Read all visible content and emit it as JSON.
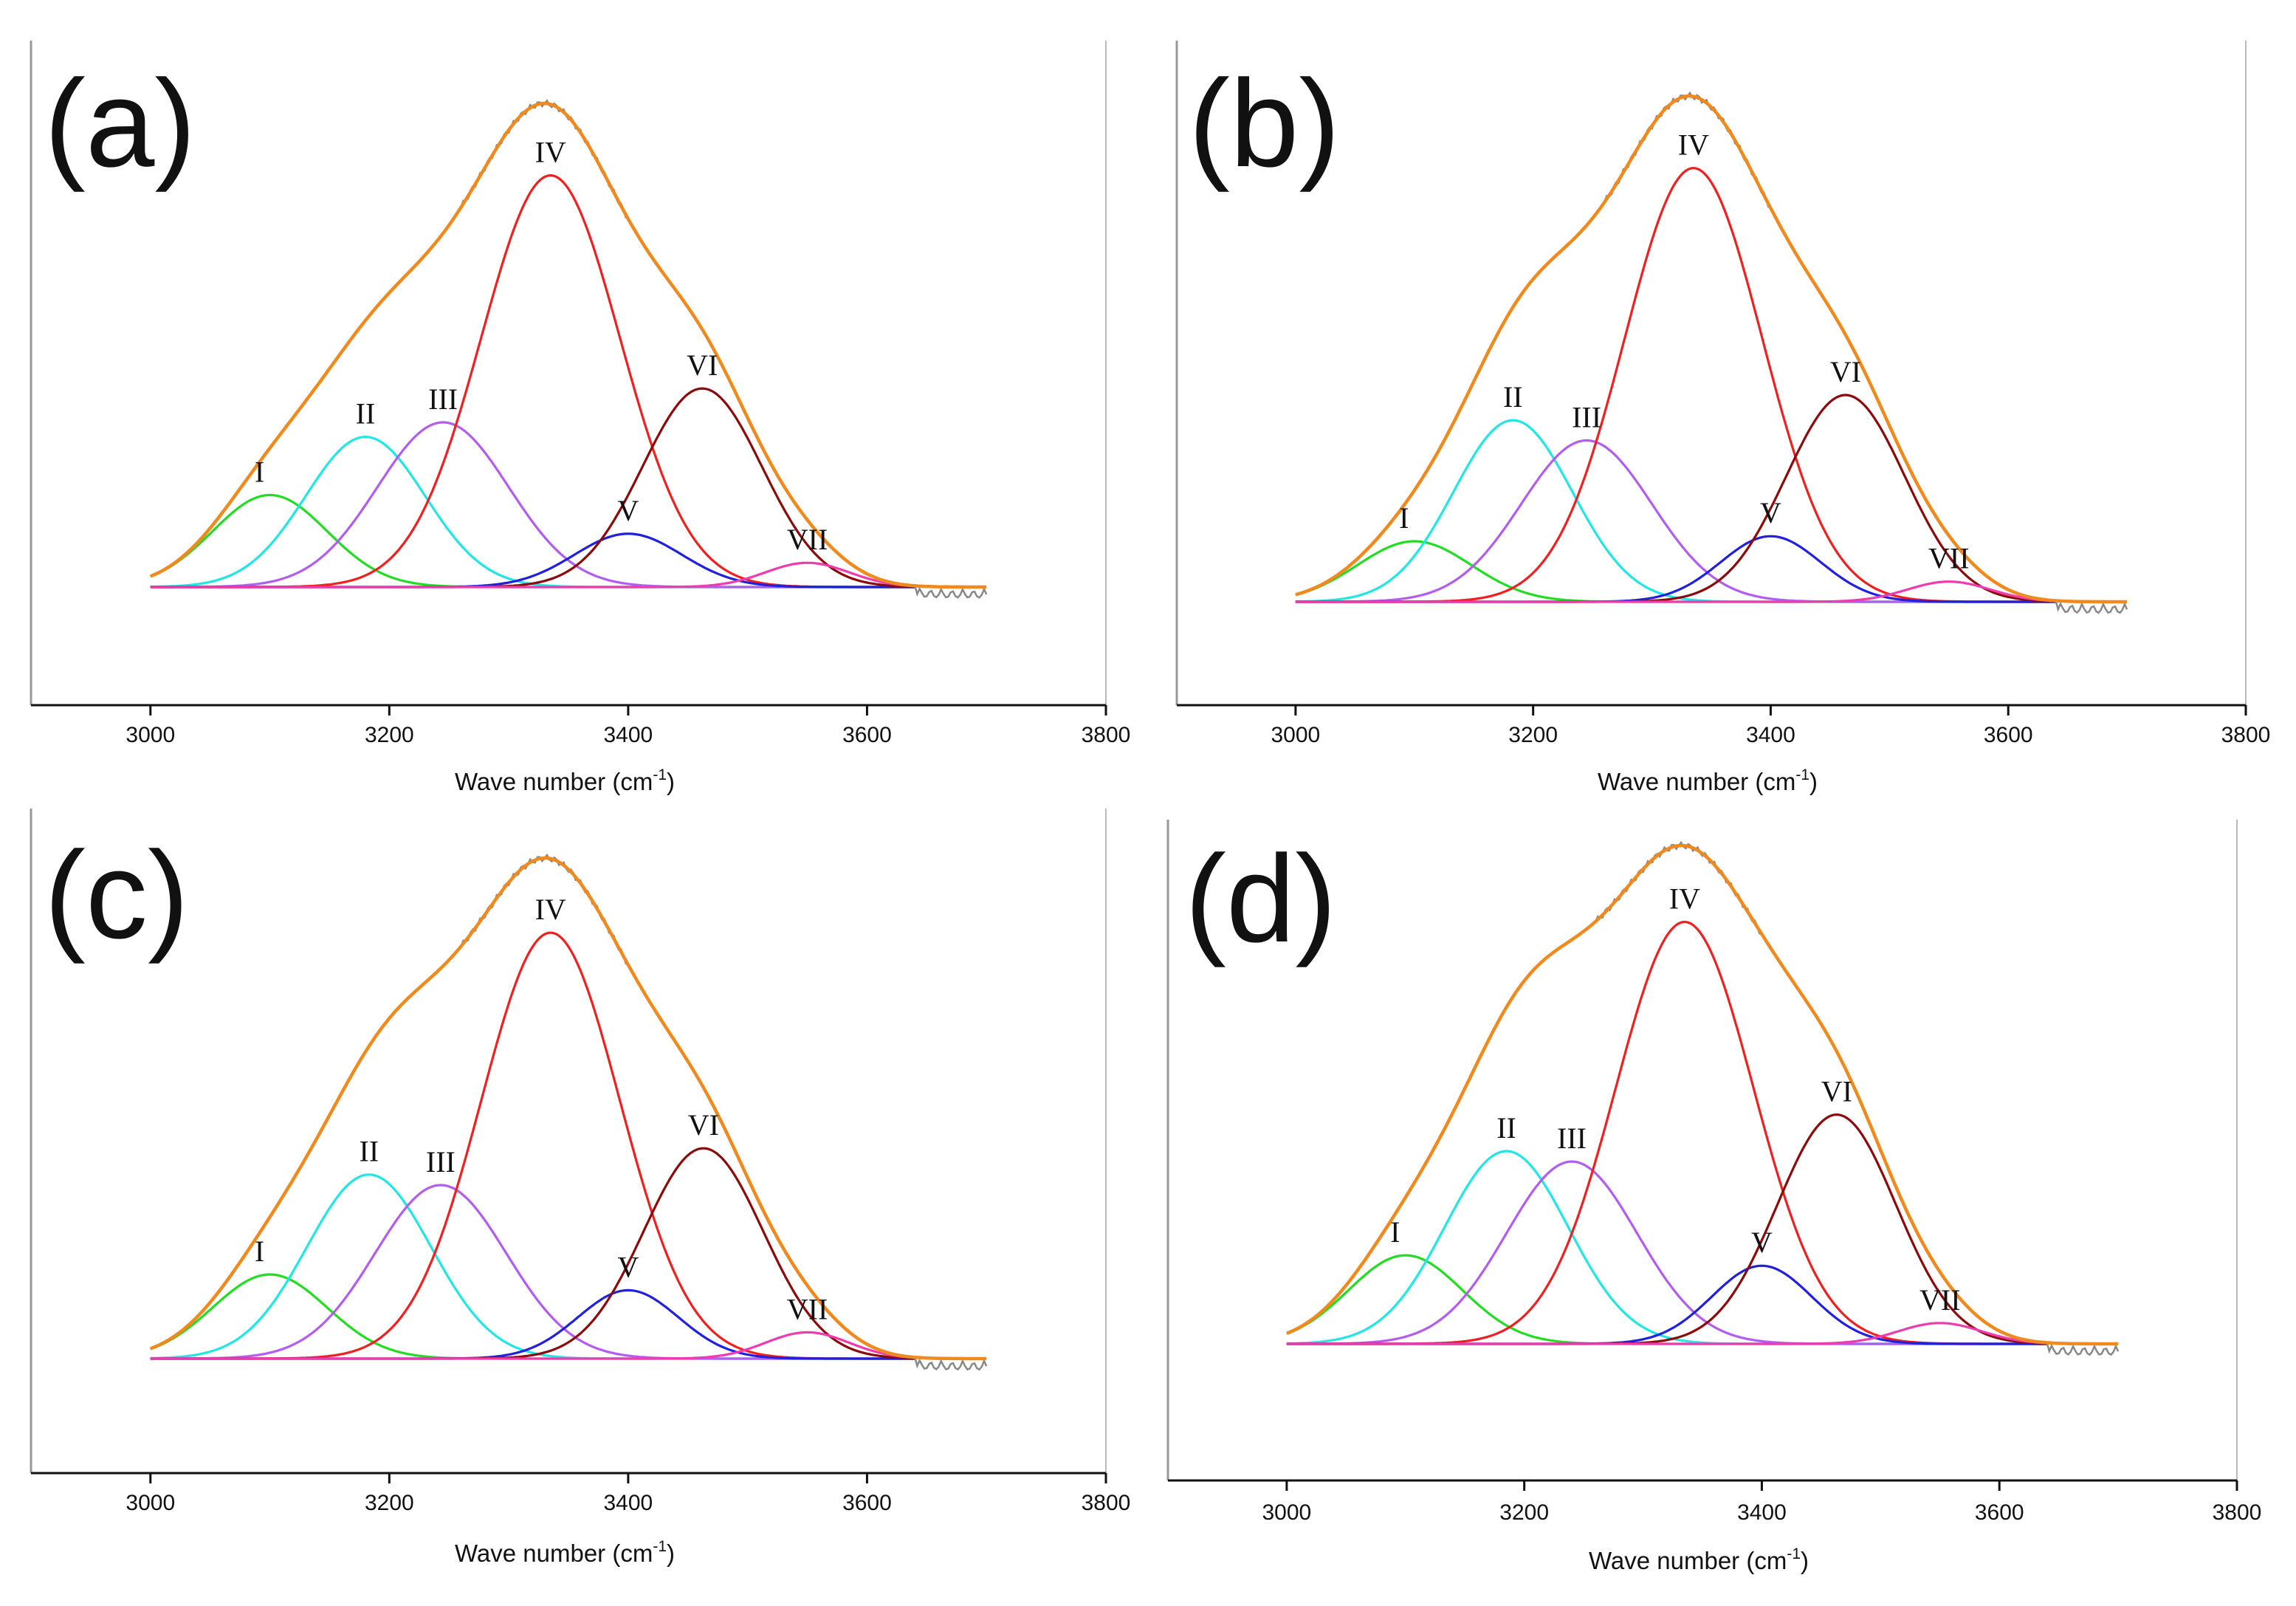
{
  "figure": {
    "panels": [
      {
        "tag": "(a)",
        "xlabel": "Wave number (cm",
        "xlabel_sup": "-1",
        "xlabel_tail": ")"
      },
      {
        "tag": "(b)",
        "xlabel": "Wave number (cm",
        "xlabel_sup": "-1",
        "xlabel_tail": ")"
      },
      {
        "tag": "(c)",
        "xlabel": "Wave number (cm",
        "xlabel_sup": "-1",
        "xlabel_tail": ")"
      },
      {
        "tag": "(d)",
        "xlabel": "Wave number (cm",
        "xlabel_sup": "-1",
        "xlabel_tail": ")"
      }
    ]
  },
  "colors": {
    "I": "#22dd22",
    "II": "#22e6e6",
    "III": "#b25cf0",
    "IV": "#ee2020",
    "V": "#2020dd",
    "VI": "#8b0a0a",
    "VII": "#ee3cb0",
    "envelope": "#f08a1e",
    "measured": "#888888",
    "axis": "#999999"
  },
  "chart_data": [
    {
      "type": "line",
      "panel": "(a)",
      "xlabel": "Wave number (cm-1)",
      "xlim": [
        2900,
        3800
      ],
      "xticks": [
        3000,
        3200,
        3400,
        3600,
        3800
      ],
      "x_range_of_fit": [
        3000,
        3700
      ],
      "series": [
        {
          "name": "I",
          "peak_x": 3100,
          "height": 0.19,
          "width": 48
        },
        {
          "name": "II",
          "peak_x": 3180,
          "height": 0.31,
          "width": 50
        },
        {
          "name": "III",
          "peak_x": 3245,
          "height": 0.34,
          "width": 55
        },
        {
          "name": "IV",
          "peak_x": 3335,
          "height": 0.85,
          "width": 58
        },
        {
          "name": "V",
          "peak_x": 3400,
          "height": 0.11,
          "width": 45
        },
        {
          "name": "VI",
          "peak_x": 3462,
          "height": 0.41,
          "width": 50
        },
        {
          "name": "VII",
          "peak_x": 3550,
          "height": 0.05,
          "width": 35
        }
      ],
      "envelope_peak": {
        "x": 3325,
        "y": 1.0
      }
    },
    {
      "type": "line",
      "panel": "(b)",
      "xlabel": "Wave number (cm-1)",
      "xlim": [
        2900,
        3800
      ],
      "xticks": [
        3000,
        3200,
        3400,
        3600,
        3800
      ],
      "x_range_of_fit": [
        3000,
        3700
      ],
      "series": [
        {
          "name": "I",
          "peak_x": 3100,
          "height": 0.12,
          "width": 48
        },
        {
          "name": "II",
          "peak_x": 3183,
          "height": 0.36,
          "width": 50
        },
        {
          "name": "III",
          "peak_x": 3245,
          "height": 0.32,
          "width": 55
        },
        {
          "name": "IV",
          "peak_x": 3335,
          "height": 0.86,
          "width": 58
        },
        {
          "name": "V",
          "peak_x": 3400,
          "height": 0.13,
          "width": 42
        },
        {
          "name": "VI",
          "peak_x": 3463,
          "height": 0.41,
          "width": 50
        },
        {
          "name": "VII",
          "peak_x": 3550,
          "height": 0.04,
          "width": 35
        }
      ],
      "envelope_peak": {
        "x": 3325,
        "y": 1.0
      }
    },
    {
      "type": "line",
      "panel": "(c)",
      "xlabel": "Wave number (cm-1)",
      "xlim": [
        2900,
        3800
      ],
      "xticks": [
        3000,
        3200,
        3400,
        3600,
        3800
      ],
      "x_range_of_fit": [
        3000,
        3700
      ],
      "series": [
        {
          "name": "I",
          "peak_x": 3100,
          "height": 0.16,
          "width": 48
        },
        {
          "name": "II",
          "peak_x": 3183,
          "height": 0.35,
          "width": 52
        },
        {
          "name": "III",
          "peak_x": 3243,
          "height": 0.33,
          "width": 55
        },
        {
          "name": "IV",
          "peak_x": 3335,
          "height": 0.81,
          "width": 58
        },
        {
          "name": "V",
          "peak_x": 3400,
          "height": 0.13,
          "width": 42
        },
        {
          "name": "VI",
          "peak_x": 3463,
          "height": 0.4,
          "width": 50
        },
        {
          "name": "VII",
          "peak_x": 3550,
          "height": 0.05,
          "width": 35
        }
      ],
      "envelope_peak": {
        "x": 3325,
        "y": 1.0
      }
    },
    {
      "type": "line",
      "panel": "(d)",
      "xlabel": "Wave number (cm-1)",
      "xlim": [
        2900,
        3800
      ],
      "xticks": [
        3000,
        3200,
        3400,
        3600,
        3800
      ],
      "x_range_of_fit": [
        3000,
        3700
      ],
      "series": [
        {
          "name": "I",
          "peak_x": 3100,
          "height": 0.17,
          "width": 48
        },
        {
          "name": "II",
          "peak_x": 3185,
          "height": 0.37,
          "width": 52
        },
        {
          "name": "III",
          "peak_x": 3240,
          "height": 0.35,
          "width": 55
        },
        {
          "name": "IV",
          "peak_x": 3335,
          "height": 0.81,
          "width": 58
        },
        {
          "name": "V",
          "peak_x": 3400,
          "height": 0.15,
          "width": 42
        },
        {
          "name": "VI",
          "peak_x": 3463,
          "height": 0.44,
          "width": 50
        },
        {
          "name": "VII",
          "peak_x": 3550,
          "height": 0.04,
          "width": 35
        }
      ],
      "envelope_peak": {
        "x": 3325,
        "y": 1.0
      }
    }
  ]
}
